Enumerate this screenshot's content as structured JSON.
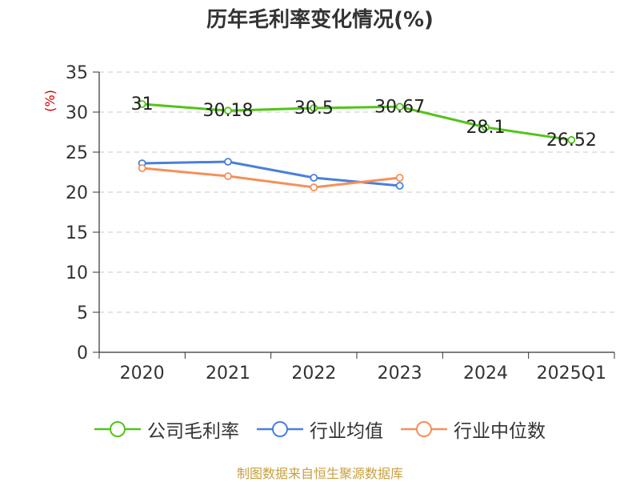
{
  "chart_data": {
    "type": "line",
    "title": "历年毛利率变化情况(%)",
    "ylabel": "(%)",
    "categories": [
      "2020",
      "2021",
      "2022",
      "2023",
      "2024",
      "2025Q1"
    ],
    "ylim": [
      0,
      35
    ],
    "yticks": [
      0,
      5,
      10,
      15,
      20,
      25,
      30,
      35
    ],
    "grid": true,
    "legend_position": "bottom",
    "series": [
      {
        "name": "公司毛利率",
        "color": "#52c41a",
        "values": [
          31,
          30.18,
          30.5,
          30.67,
          28.1,
          26.52
        ],
        "labels": [
          "31",
          "30.18",
          "30.5",
          "30.67",
          "28.1",
          "26.52"
        ]
      },
      {
        "name": "行业均值",
        "color": "#4a7fdb",
        "values": [
          23.6,
          23.8,
          21.8,
          20.8,
          null,
          null
        ]
      },
      {
        "name": "行业中位数",
        "color": "#f4905a",
        "values": [
          23.0,
          22.0,
          20.6,
          21.8,
          null,
          null
        ]
      }
    ]
  },
  "source": "制图数据来自恒生聚源数据库"
}
